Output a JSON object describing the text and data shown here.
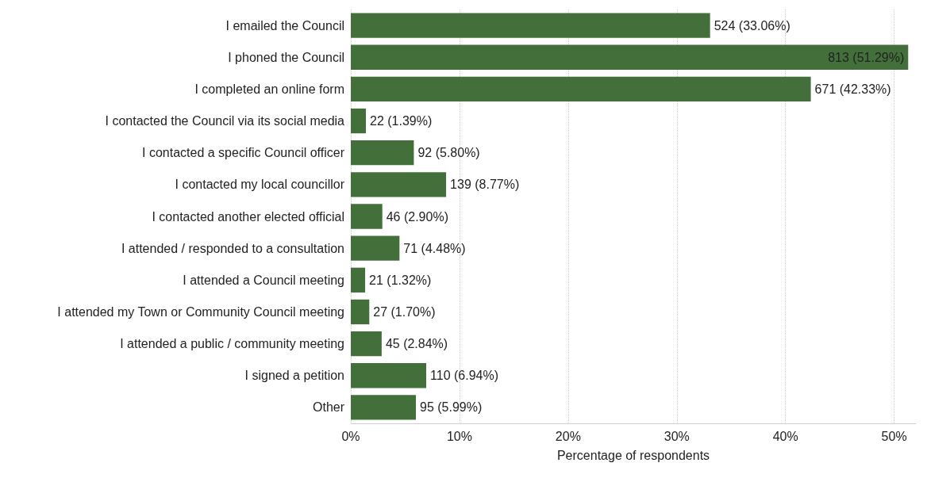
{
  "chart_data": {
    "type": "bar",
    "orientation": "horizontal",
    "xlabel": "Percentage of respondents",
    "categories": [
      "I emailed the Council",
      "I phoned the Council",
      "I completed an online form",
      "I contacted the Council via its social media",
      "I contacted a specific Council officer",
      "I contacted my local councillor",
      "I contacted another elected official",
      "I attended / responded to a consultation",
      "I attended a Council meeting",
      "I attended my Town or Community Council meeting",
      "I attended a public / community meeting",
      "I signed a petition",
      "Other"
    ],
    "values": [
      33.06,
      51.29,
      42.33,
      1.39,
      5.8,
      8.77,
      2.9,
      4.48,
      1.32,
      1.7,
      2.84,
      6.94,
      5.99
    ],
    "value_labels": [
      "524 (33.06%)",
      "813 (51.29%)",
      "671 (42.33%)",
      "22 (1.39%)",
      "92 (5.80%)",
      "139 (8.77%)",
      "46 (2.90%)",
      "71 (4.48%)",
      "21 (1.32%)",
      "27 (1.70%)",
      "45 (2.84%)",
      "110 (6.94%)",
      "95 (5.99%)"
    ],
    "color": "#43703a",
    "xlim": [
      0,
      52
    ],
    "xticks": [
      {
        "value": 0,
        "label": "0%"
      },
      {
        "value": 10,
        "label": "10%"
      },
      {
        "value": 20,
        "label": "20%"
      },
      {
        "value": 30,
        "label": "30%"
      },
      {
        "value": 40,
        "label": "40%"
      },
      {
        "value": 50,
        "label": "50%"
      }
    ],
    "grid": "x"
  }
}
